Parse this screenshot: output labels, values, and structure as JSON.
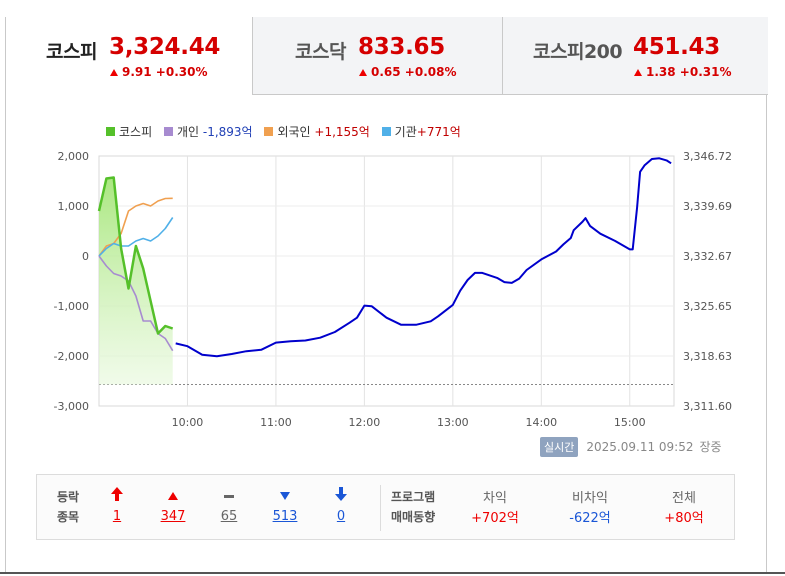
{
  "tabs": [
    {
      "name": "코스피",
      "value": "3,324.44",
      "change": "9.91 +0.30%",
      "active": true
    },
    {
      "name": "코스닥",
      "value": "833.65",
      "change": "0.65 +0.08%",
      "active": false
    },
    {
      "name": "코스피200",
      "value": "451.43",
      "change": "1.38 +0.31%",
      "active": false
    }
  ],
  "legend": {
    "kospi": "코스피",
    "individual": "개인",
    "individual_value": "-1,893억",
    "foreign": "외국인",
    "foreign_value": "+1,155억",
    "institution": "기관",
    "institution_value": "+771억"
  },
  "status": {
    "realtime_label": "실시간",
    "timestamp": "2025.09.11 09:52",
    "suffix": "장중"
  },
  "breadth": {
    "header_line1": "등락",
    "header_line2": "종목",
    "items": [
      {
        "icon": "limit-up",
        "value": "1"
      },
      {
        "icon": "up",
        "value": "347"
      },
      {
        "icon": "unchanged",
        "value": "65"
      },
      {
        "icon": "down",
        "value": "513"
      },
      {
        "icon": "limit-down",
        "value": "0"
      }
    ]
  },
  "program": {
    "header_line1": "프로그램",
    "header_line2": "매매동향",
    "items": [
      {
        "label": "차익",
        "value": "+702억"
      },
      {
        "label": "비차익",
        "value": "-622억"
      },
      {
        "label": "전체",
        "value": "+80억"
      }
    ]
  },
  "colors": {
    "up": "#e00000",
    "down": "#1a56d6",
    "kospi_line": "#0000cc",
    "kospi_investor": "#55c02a",
    "individual": "#a78bd0",
    "foreign": "#f0a050",
    "institution": "#50b0e8"
  },
  "chart_data": [
    {
      "type": "line",
      "title": "",
      "x_ticks": [
        "10:00",
        "11:00",
        "12:00",
        "13:00",
        "14:00",
        "15:00"
      ],
      "y_left_ticks": [
        "2,000",
        "1,000",
        "0",
        "-1,000",
        "-2,000",
        "-3,000"
      ],
      "y_left_range": [
        -3000,
        2000
      ],
      "y_right_ticks": [
        "3,346.72",
        "3,339.69",
        "3,332.67",
        "3,325.65",
        "3,318.63",
        "3,311.60"
      ],
      "y_right_range": [
        3311.6,
        3346.72
      ],
      "x_range": [
        "09:00",
        "15:30"
      ],
      "reference_dashed_y_left": -2570,
      "series": [
        {
          "name": "코스피",
          "axis": "right",
          "points": [
            [
              "09:52",
              3320.4
            ],
            [
              "10:00",
              3320.0
            ],
            [
              "10:10",
              3318.8
            ],
            [
              "10:20",
              3318.6
            ],
            [
              "10:30",
              3318.9
            ],
            [
              "10:40",
              3319.3
            ],
            [
              "10:50",
              3319.5
            ],
            [
              "11:00",
              3320.5
            ],
            [
              "11:10",
              3320.7
            ],
            [
              "11:20",
              3320.8
            ],
            [
              "11:30",
              3321.2
            ],
            [
              "11:40",
              3322.0
            ],
            [
              "11:50",
              3323.3
            ],
            [
              "11:55",
              3324.0
            ],
            [
              "12:00",
              3325.7
            ],
            [
              "12:05",
              3325.6
            ],
            [
              "12:15",
              3324.0
            ],
            [
              "12:25",
              3323.0
            ],
            [
              "12:35",
              3323.0
            ],
            [
              "12:45",
              3323.5
            ],
            [
              "12:50",
              3324.2
            ],
            [
              "13:00",
              3325.8
            ],
            [
              "13:05",
              3327.8
            ],
            [
              "13:10",
              3329.3
            ],
            [
              "13:15",
              3330.3
            ],
            [
              "13:20",
              3330.3
            ],
            [
              "13:30",
              3329.6
            ],
            [
              "13:35",
              3329.0
            ],
            [
              "13:40",
              3328.9
            ],
            [
              "13:45",
              3329.5
            ],
            [
              "13:50",
              3330.7
            ],
            [
              "14:00",
              3332.2
            ],
            [
              "14:10",
              3333.3
            ],
            [
              "14:15",
              3334.3
            ],
            [
              "14:20",
              3335.2
            ],
            [
              "14:22",
              3336.3
            ],
            [
              "14:28",
              3337.5
            ],
            [
              "14:30",
              3338.0
            ],
            [
              "14:33",
              3336.9
            ],
            [
              "14:40",
              3335.8
            ],
            [
              "14:50",
              3334.8
            ],
            [
              "15:00",
              3333.6
            ],
            [
              "15:02",
              3333.6
            ],
            [
              "15:05",
              3339.5
            ],
            [
              "15:07",
              3344.5
            ],
            [
              "15:10",
              3345.4
            ],
            [
              "15:15",
              3346.3
            ],
            [
              "15:20",
              3346.4
            ],
            [
              "15:25",
              3346.1
            ],
            [
              "15:28",
              3345.7
            ]
          ]
        },
        {
          "name": "코스피",
          "axis": "left",
          "area": true,
          "points": [
            [
              "09:00",
              900
            ],
            [
              "09:05",
              1550
            ],
            [
              "09:10",
              1570
            ],
            [
              "09:15",
              150
            ],
            [
              "09:20",
              -650
            ],
            [
              "09:25",
              200
            ],
            [
              "09:30",
              -250
            ],
            [
              "09:35",
              -900
            ],
            [
              "09:40",
              -1550
            ],
            [
              "09:45",
              -1400
            ],
            [
              "09:50",
              -1450
            ]
          ]
        },
        {
          "name": "개인",
          "axis": "left",
          "points": [
            [
              "09:00",
              0
            ],
            [
              "09:05",
              -200
            ],
            [
              "09:10",
              -350
            ],
            [
              "09:15",
              -400
            ],
            [
              "09:20",
              -500
            ],
            [
              "09:25",
              -800
            ],
            [
              "09:30",
              -1300
            ],
            [
              "09:35",
              -1300
            ],
            [
              "09:40",
              -1550
            ],
            [
              "09:45",
              -1650
            ],
            [
              "09:50",
              -1893
            ]
          ]
        },
        {
          "name": "외국인",
          "axis": "left",
          "points": [
            [
              "09:00",
              0
            ],
            [
              "09:05",
              200
            ],
            [
              "09:10",
              250
            ],
            [
              "09:15",
              450
            ],
            [
              "09:20",
              900
            ],
            [
              "09:25",
              1000
            ],
            [
              "09:30",
              1050
            ],
            [
              "09:35",
              1000
            ],
            [
              "09:40",
              1100
            ],
            [
              "09:45",
              1150
            ],
            [
              "09:50",
              1155
            ]
          ]
        },
        {
          "name": "기관",
          "axis": "left",
          "points": [
            [
              "09:00",
              0
            ],
            [
              "09:05",
              150
            ],
            [
              "09:10",
              250
            ],
            [
              "09:15",
              200
            ],
            [
              "09:20",
              200
            ],
            [
              "09:25",
              300
            ],
            [
              "09:30",
              350
            ],
            [
              "09:35",
              300
            ],
            [
              "09:40",
              400
            ],
            [
              "09:45",
              550
            ],
            [
              "09:50",
              771
            ]
          ]
        }
      ]
    }
  ]
}
